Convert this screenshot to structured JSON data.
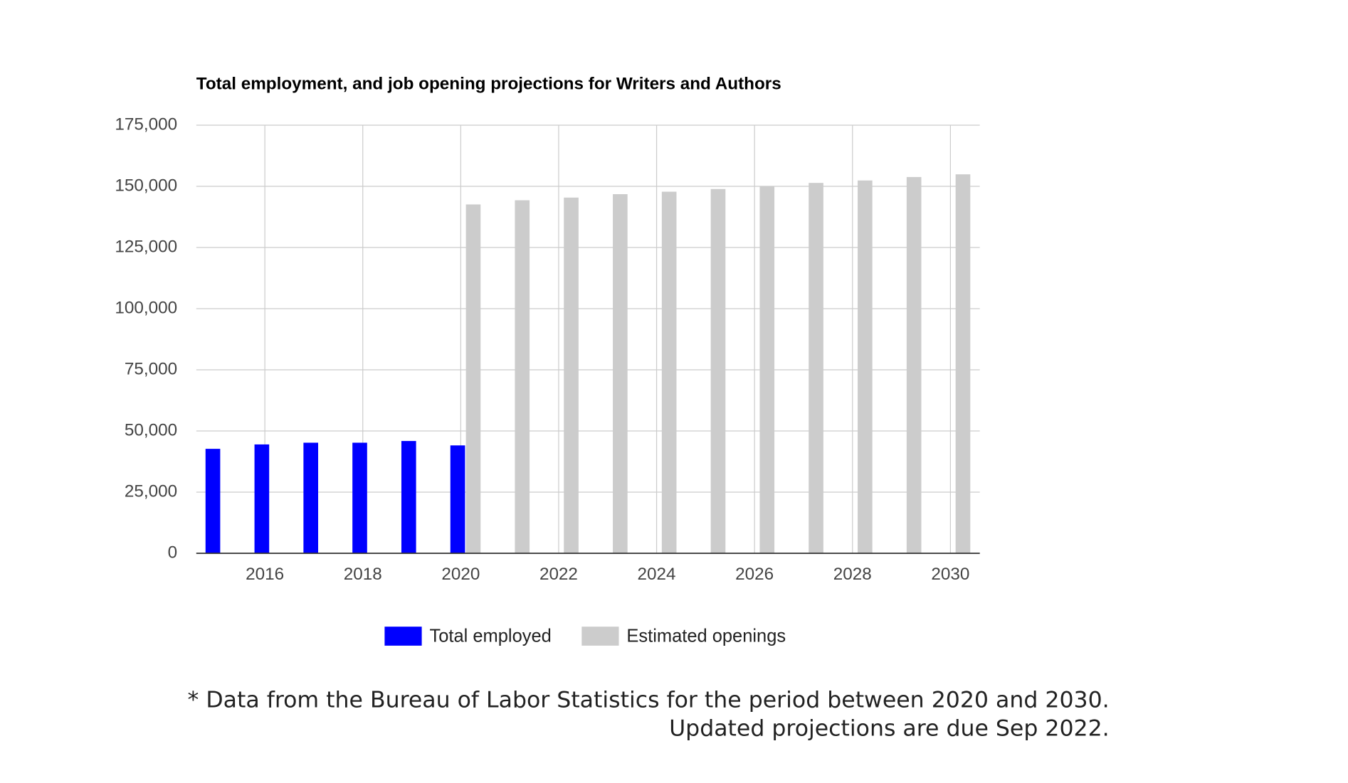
{
  "chart_data": {
    "type": "bar",
    "title": "Total employment, and job opening projections for Writers and Authors",
    "x": [
      2015,
      2016,
      2017,
      2018,
      2019,
      2020,
      2021,
      2022,
      2023,
      2024,
      2025,
      2026,
      2027,
      2028,
      2029,
      2030
    ],
    "series": [
      {
        "name": "Total employed",
        "color": "#0000ff",
        "values": [
          42700,
          44500,
          45200,
          45200,
          45900,
          44100,
          null,
          null,
          null,
          null,
          null,
          null,
          null,
          null,
          null,
          null
        ]
      },
      {
        "name": "Estimated openings",
        "color": "#cccccc",
        "values": [
          null,
          null,
          null,
          null,
          null,
          142600,
          144300,
          145400,
          146800,
          147800,
          148900,
          150000,
          151400,
          152400,
          153800,
          154900
        ]
      }
    ],
    "xlim": [
      2014.6,
      2030.6
    ],
    "xticks": [
      2016,
      2018,
      2020,
      2022,
      2024,
      2026,
      2028,
      2030
    ],
    "ylim": [
      0,
      175000
    ],
    "yticks": [
      0,
      {
        "value": 25000,
        "label": "25,000"
      },
      {
        "value": 50000,
        "label": "50,000"
      },
      {
        "value": 75000,
        "label": "75,000"
      },
      {
        "value": 100000,
        "label": "100,000"
      },
      {
        "value": 125000,
        "label": "125,000"
      },
      {
        "value": 150000,
        "label": "150,000"
      },
      {
        "value": 175000,
        "label": "175,000"
      }
    ],
    "grid": true,
    "legend": "bottom",
    "notes": [
      "* Data from the Bureau of Labor Statistics for the period between 2020 and 2030.",
      "Updated projections are due Sep 2022."
    ]
  }
}
